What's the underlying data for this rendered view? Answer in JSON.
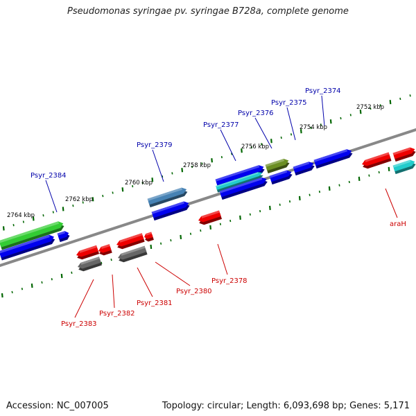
{
  "title": "Pseudomonas syringae pv. syringae B728a, complete genome",
  "footer": {
    "accession": "Accession: NC_007005",
    "summary": "Topology: circular; Length: 6,093,698 bp; Genes: 5,171"
  },
  "colors": {
    "forward_gene": "#0000ee",
    "reverse_gene": "#ee0000",
    "label_forward": "#0000aa",
    "label_reverse": "#cc0000",
    "rna_green": "#33cc33",
    "cyan": "#22cccc",
    "steelblue": "#4682b4",
    "olive": "#6b8e23",
    "gray": "#666666",
    "backbone": "#888888",
    "tick": "#006600"
  },
  "scale_labels": [
    "2764 kbp",
    "2762 kbp",
    "2760 kbp",
    "2758 kbp",
    "2756 kbp",
    "2754 kbp",
    "2752 kbp"
  ],
  "gene_labels": {
    "forward": [
      "Psyr_2384",
      "Psyr_2379",
      "Psyr_2377",
      "Psyr_2376",
      "Psyr_2375",
      "Psyr_2374"
    ],
    "reverse": [
      "Psyr_2383",
      "Psyr_2382",
      "Psyr_2381",
      "Psyr_2380",
      "Psyr_2378",
      "araH"
    ]
  }
}
